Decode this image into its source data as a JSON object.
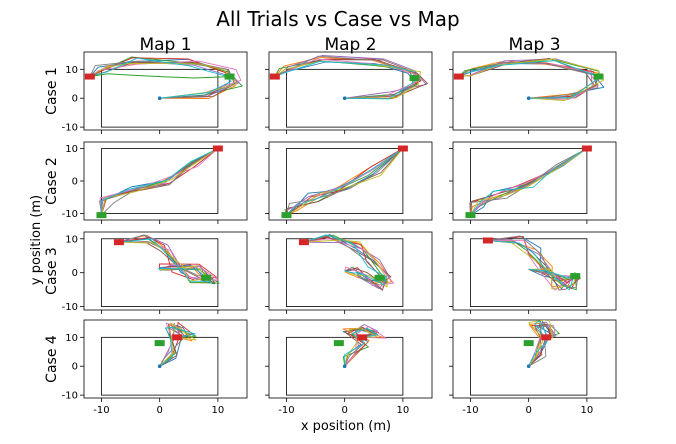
{
  "title": "All Trials vs Case vs Map",
  "xlabel": "x position (m)",
  "ylabel": "y position (m)",
  "col_titles": [
    "Map 1",
    "Map 2",
    "Map 3"
  ],
  "row_titles": [
    "Case 1",
    "Case 2",
    "Case 3",
    "Case 4"
  ],
  "colors": {
    "start_marker": "#d62728",
    "goal_marker": "#2ca02c",
    "series": [
      "#1f77b4",
      "#ff7f0e",
      "#2ca02c",
      "#d62728",
      "#9467bd",
      "#8c564b",
      "#e377c2",
      "#7f7f7f",
      "#bcbd22",
      "#17becf"
    ]
  },
  "chart_data": {
    "type": "line",
    "layout": "4x3 grid of subplots (rows = case, columns = map); shared x axis, per-row y axis",
    "grid": false,
    "x_ticks": [
      -10,
      0,
      10
    ],
    "x_ticks_shown_on_bottom_row_only": true,
    "series_per_panel": 10,
    "rows": [
      {
        "case": "Case 1",
        "ylim": [
          -11,
          16
        ],
        "y_ticks": [
          -10,
          0,
          10
        ],
        "panels": [
          {
            "map": "Map 1",
            "xlim": [
              -13,
              15
            ],
            "box": [
              -10,
              10,
              -10,
              10
            ],
            "red": [
              -12,
              7.5
            ],
            "green": [
              12,
              7.5
            ],
            "paths": [
              [
                [
                  0,
                  0
                ],
                [
                  8,
                  1
                ],
                [
                  13,
                  5
                ],
                [
                  12,
                  9
                ],
                [
                  6,
                  12.5
                ],
                [
                  -4,
                  13
                ],
                [
                  -10,
                  10
                ],
                [
                  -12,
                  7.5
                ]
              ]
            ],
            "outlier": [
              [
                12,
                7.5
              ],
              [
                6,
                7
              ],
              [
                0,
                7.5
              ],
              [
                -5,
                8
              ],
              [
                -9,
                8.5
              ],
              [
                -12,
                7.5
              ]
            ]
          },
          {
            "map": "Map 2",
            "xlim": [
              -13,
              15
            ],
            "box": [
              -10,
              10,
              -10,
              10
            ],
            "red": [
              -12,
              7.5
            ],
            "green": [
              12,
              7
            ],
            "paths": [
              [
                [
                  0,
                  0
                ],
                [
                  8,
                  1
                ],
                [
                  13,
                  5
                ],
                [
                  12,
                  9
                ],
                [
                  6,
                  12.5
                ],
                [
                  -4,
                  13.5
                ],
                [
                  -10,
                  10
                ],
                [
                  -12,
                  7.5
                ]
              ]
            ]
          },
          {
            "map": "Map 3",
            "xlim": [
              -13,
              15
            ],
            "box": [
              -10,
              10,
              -10,
              10
            ],
            "red": [
              -12,
              7.5
            ],
            "green": [
              12,
              7.5
            ],
            "paths": [
              [
                [
                  0,
                  0
                ],
                [
                  7,
                  0.5
                ],
                [
                  12,
                  5
                ],
                [
                  11,
                  9
                ],
                [
                  4,
                  12.5
                ],
                [
                  -4,
                  12
                ],
                [
                  -10,
                  9
                ],
                [
                  -12,
                  7.5
                ]
              ]
            ]
          }
        ]
      },
      {
        "case": "Case 2",
        "ylim": [
          -12,
          12
        ],
        "y_ticks": [
          -10,
          0,
          10
        ],
        "panels": [
          {
            "map": "Map 1",
            "xlim": [
              -13,
              15
            ],
            "box": [
              -10,
              10,
              -10,
              10
            ],
            "red": [
              10,
              10
            ],
            "green": [
              -10,
              -10.5
            ],
            "paths": [
              [
                [
                  10,
                  10
                ],
                [
                  6,
                  5
                ],
                [
                  1,
                  0
                ],
                [
                  -5,
                  -3
                ],
                [
                  -9,
                  -6
                ],
                [
                  -10,
                  -10.5
                ]
              ]
            ]
          },
          {
            "map": "Map 2",
            "xlim": [
              -13,
              15
            ],
            "box": [
              -10,
              10,
              -10,
              10
            ],
            "red": [
              10,
              10
            ],
            "green": [
              -10,
              -10.5
            ],
            "paths": [
              [
                [
                  10,
                  10
                ],
                [
                  5,
                  3
                ],
                [
                  0,
                  -2
                ],
                [
                  -5,
                  -5
                ],
                [
                  -9,
                  -8
                ],
                [
                  -10,
                  -10.5
                ]
              ]
            ]
          },
          {
            "map": "Map 3",
            "xlim": [
              -13,
              15
            ],
            "box": [
              -10,
              10,
              -10,
              10
            ],
            "red": [
              10,
              10
            ],
            "green": [
              -10,
              -10.5
            ],
            "paths": [
              [
                [
                  10,
                  10
                ],
                [
                  5,
                  4
                ],
                [
                  0,
                  -1
                ],
                [
                  -5,
                  -4
                ],
                [
                  -9,
                  -7
                ],
                [
                  -10,
                  -10.5
                ]
              ]
            ]
          }
        ]
      },
      {
        "case": "Case 3",
        "ylim": [
          -11,
          12
        ],
        "y_ticks": [
          -10,
          0,
          10
        ],
        "panels": [
          {
            "map": "Map 1",
            "xlim": [
              -13,
              15
            ],
            "box": [
              -10,
              10,
              -10,
              10
            ],
            "red": [
              -7,
              9
            ],
            "green": [
              8,
              -1.5
            ],
            "paths": [
              [
                [
                  -7,
                  9
                ],
                [
                  -2,
                  10
                ],
                [
                  1,
                  7
                ],
                [
                  3,
                  1
                ],
                [
                  6,
                  -2
                ],
                [
                  9,
                  -2
                ],
                [
                  6,
                  2
                ],
                [
                  1,
                  2
                ],
                [
                  0,
                  1
                ]
              ]
            ]
          },
          {
            "map": "Map 2",
            "xlim": [
              -13,
              15
            ],
            "box": [
              -10,
              10,
              -10,
              10
            ],
            "red": [
              -7,
              9
            ],
            "green": [
              6,
              -1.5
            ],
            "paths": [
              [
                [
                  -7,
                  9
                ],
                [
                  -2,
                  10
                ],
                [
                  2,
                  8
                ],
                [
                  5,
                  3
                ],
                [
                  8,
                  -2
                ],
                [
                  6,
                  -4
                ],
                [
                  3,
                  -1
                ],
                [
                  1,
                  0.5
                ],
                [
                  0,
                  0.5
                ]
              ]
            ]
          },
          {
            "map": "Map 3",
            "xlim": [
              -13,
              15
            ],
            "box": [
              -10,
              10,
              -10,
              10
            ],
            "red": [
              -7,
              9.5
            ],
            "green": [
              8,
              -1
            ],
            "paths": [
              [
                [
                  -7,
                  9.5
                ],
                [
                  -2,
                  10
                ],
                [
                  1,
                  6
                ],
                [
                  3,
                  1
                ],
                [
                  5,
                  -4
                ],
                [
                  7,
                  -4
                ],
                [
                  8,
                  -1
                ],
                [
                  6,
                  -2
                ],
                [
                  3,
                  0
                ],
                [
                  0,
                  1
                ]
              ]
            ]
          }
        ]
      },
      {
        "case": "Case 4",
        "ylim": [
          -11,
          16
        ],
        "y_ticks": [
          -10,
          0,
          10
        ],
        "panels": [
          {
            "map": "Map 1",
            "xlim": [
              -13,
              15
            ],
            "box": [
              -10,
              10,
              -10,
              10
            ],
            "red": [
              3,
              10
            ],
            "green": [
              0,
              8
            ],
            "paths": [
              [
                [
                  0,
                  0
                ],
                [
                  2,
                  4
                ],
                [
                  3,
                  10
                ],
                [
                  2,
                  14
                ],
                [
                  3,
                  14
                ],
                [
                  5,
                  10
                ],
                [
                  3,
                  10
                ]
              ]
            ]
          },
          {
            "map": "Map 2",
            "xlim": [
              -13,
              15
            ],
            "box": [
              -10,
              10,
              -10,
              10
            ],
            "red": [
              3,
              10
            ],
            "green": [
              -1,
              8
            ],
            "paths": [
              [
                [
                  0,
                  0
                ],
                [
                  1,
                  4
                ],
                [
                  3,
                  8
                ],
                [
                  1,
                  12
                ],
                [
                  3,
                  14
                ],
                [
                  6,
                  11
                ],
                [
                  3,
                  10
                ]
              ]
            ]
          },
          {
            "map": "Map 3",
            "xlim": [
              -13,
              15
            ],
            "box": [
              -10,
              10,
              -10,
              10
            ],
            "red": [
              3,
              10
            ],
            "green": [
              0,
              8
            ],
            "paths": [
              [
                [
                  0,
                  0
                ],
                [
                  2,
                  4
                ],
                [
                  3,
                  10
                ],
                [
                  1,
                  14
                ],
                [
                  3,
                  15
                ],
                [
                  4,
                  11
                ],
                [
                  3,
                  10
                ]
              ]
            ]
          }
        ]
      }
    ]
  }
}
